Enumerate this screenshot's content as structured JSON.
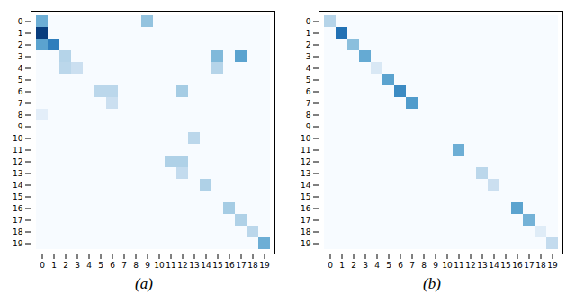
{
  "chart_data": [
    {
      "type": "heatmap",
      "title": "(a)",
      "x": [
        0,
        1,
        2,
        3,
        4,
        5,
        6,
        7,
        8,
        9,
        10,
        11,
        12,
        13,
        14,
        15,
        16,
        17,
        18,
        19
      ],
      "y": [
        0,
        1,
        2,
        3,
        4,
        5,
        6,
        7,
        8,
        9,
        10,
        11,
        12,
        13,
        14,
        15,
        16,
        17,
        18,
        19
      ],
      "zlim": [
        0,
        1
      ],
      "cells": [
        [
          0.5,
          0.0,
          0.0,
          0.0,
          0.0,
          0.0,
          0.0,
          0.0,
          0.0,
          0.4,
          0.0,
          0.0,
          0.0,
          0.0,
          0.0,
          0.0,
          0.0,
          0.0,
          0.0,
          0.0
        ],
        [
          0.95,
          0.0,
          0.0,
          0.0,
          0.0,
          0.0,
          0.0,
          0.0,
          0.0,
          0.0,
          0.0,
          0.0,
          0.0,
          0.0,
          0.0,
          0.0,
          0.0,
          0.0,
          0.0,
          0.0
        ],
        [
          0.55,
          0.7,
          0.0,
          0.0,
          0.0,
          0.0,
          0.0,
          0.0,
          0.0,
          0.0,
          0.0,
          0.0,
          0.0,
          0.0,
          0.0,
          0.0,
          0.0,
          0.0,
          0.0,
          0.0
        ],
        [
          0.0,
          0.0,
          0.3,
          0.0,
          0.0,
          0.0,
          0.0,
          0.0,
          0.0,
          0.0,
          0.0,
          0.0,
          0.0,
          0.0,
          0.0,
          0.45,
          0.0,
          0.55,
          0.0,
          0.0
        ],
        [
          0.0,
          0.0,
          0.28,
          0.22,
          0.0,
          0.0,
          0.0,
          0.0,
          0.0,
          0.0,
          0.0,
          0.0,
          0.0,
          0.0,
          0.0,
          0.3,
          0.0,
          0.0,
          0.0,
          0.0
        ],
        [
          0.0,
          0.0,
          0.0,
          0.0,
          0.0,
          0.0,
          0.0,
          0.0,
          0.0,
          0.0,
          0.0,
          0.0,
          0.0,
          0.0,
          0.0,
          0.0,
          0.0,
          0.0,
          0.0,
          0.0
        ],
        [
          0.0,
          0.0,
          0.0,
          0.0,
          0.0,
          0.28,
          0.28,
          0.0,
          0.0,
          0.0,
          0.0,
          0.0,
          0.35,
          0.0,
          0.0,
          0.0,
          0.0,
          0.0,
          0.0,
          0.0
        ],
        [
          0.0,
          0.0,
          0.0,
          0.0,
          0.0,
          0.0,
          0.22,
          0.0,
          0.0,
          0.0,
          0.0,
          0.0,
          0.0,
          0.0,
          0.0,
          0.0,
          0.0,
          0.0,
          0.0,
          0.0
        ],
        [
          0.1,
          0.0,
          0.0,
          0.0,
          0.0,
          0.0,
          0.0,
          0.0,
          0.0,
          0.0,
          0.0,
          0.0,
          0.0,
          0.0,
          0.0,
          0.0,
          0.0,
          0.0,
          0.0,
          0.0
        ],
        [
          0.0,
          0.0,
          0.0,
          0.0,
          0.0,
          0.0,
          0.0,
          0.0,
          0.0,
          0.0,
          0.0,
          0.0,
          0.0,
          0.0,
          0.0,
          0.0,
          0.0,
          0.0,
          0.0,
          0.0
        ],
        [
          0.0,
          0.0,
          0.0,
          0.0,
          0.0,
          0.0,
          0.0,
          0.0,
          0.0,
          0.0,
          0.0,
          0.0,
          0.0,
          0.28,
          0.0,
          0.0,
          0.0,
          0.0,
          0.0,
          0.0
        ],
        [
          0.0,
          0.0,
          0.0,
          0.0,
          0.0,
          0.0,
          0.0,
          0.0,
          0.0,
          0.0,
          0.0,
          0.0,
          0.0,
          0.0,
          0.0,
          0.0,
          0.0,
          0.0,
          0.0,
          0.0
        ],
        [
          0.0,
          0.0,
          0.0,
          0.0,
          0.0,
          0.0,
          0.0,
          0.0,
          0.0,
          0.0,
          0.0,
          0.32,
          0.32,
          0.0,
          0.0,
          0.0,
          0.0,
          0.0,
          0.0,
          0.0
        ],
        [
          0.0,
          0.0,
          0.0,
          0.0,
          0.0,
          0.0,
          0.0,
          0.0,
          0.0,
          0.0,
          0.0,
          0.0,
          0.25,
          0.0,
          0.0,
          0.0,
          0.0,
          0.0,
          0.0,
          0.0
        ],
        [
          0.0,
          0.0,
          0.0,
          0.0,
          0.0,
          0.0,
          0.0,
          0.0,
          0.0,
          0.0,
          0.0,
          0.0,
          0.0,
          0.0,
          0.32,
          0.0,
          0.0,
          0.0,
          0.0,
          0.0
        ],
        [
          0.0,
          0.0,
          0.0,
          0.0,
          0.0,
          0.0,
          0.0,
          0.0,
          0.0,
          0.0,
          0.0,
          0.0,
          0.0,
          0.0,
          0.0,
          0.0,
          0.0,
          0.0,
          0.0,
          0.0
        ],
        [
          0.0,
          0.0,
          0.0,
          0.0,
          0.0,
          0.0,
          0.0,
          0.0,
          0.0,
          0.0,
          0.0,
          0.0,
          0.0,
          0.0,
          0.0,
          0.0,
          0.35,
          0.0,
          0.0,
          0.0
        ],
        [
          0.0,
          0.0,
          0.0,
          0.0,
          0.0,
          0.0,
          0.0,
          0.0,
          0.0,
          0.0,
          0.0,
          0.0,
          0.0,
          0.0,
          0.0,
          0.0,
          0.0,
          0.32,
          0.0,
          0.0
        ],
        [
          0.0,
          0.0,
          0.0,
          0.0,
          0.0,
          0.0,
          0.0,
          0.0,
          0.0,
          0.0,
          0.0,
          0.0,
          0.0,
          0.0,
          0.0,
          0.0,
          0.0,
          0.0,
          0.28,
          0.0
        ],
        [
          0.0,
          0.0,
          0.0,
          0.0,
          0.0,
          0.0,
          0.0,
          0.0,
          0.0,
          0.0,
          0.0,
          0.0,
          0.0,
          0.0,
          0.0,
          0.0,
          0.0,
          0.0,
          0.0,
          0.5
        ]
      ]
    },
    {
      "type": "heatmap",
      "title": "(b)",
      "x": [
        0,
        1,
        2,
        3,
        4,
        5,
        6,
        7,
        8,
        9,
        10,
        11,
        12,
        13,
        14,
        15,
        16,
        17,
        18,
        19
      ],
      "y": [
        0,
        1,
        2,
        3,
        4,
        5,
        6,
        7,
        8,
        9,
        10,
        11,
        12,
        13,
        14,
        15,
        16,
        17,
        18,
        19
      ],
      "zlim": [
        0,
        1
      ],
      "cells": [
        [
          0.3,
          0.0,
          0.0,
          0.0,
          0.0,
          0.0,
          0.0,
          0.0,
          0.0,
          0.0,
          0.0,
          0.0,
          0.0,
          0.0,
          0.0,
          0.0,
          0.0,
          0.0,
          0.0,
          0.0
        ],
        [
          0.0,
          0.75,
          0.0,
          0.0,
          0.0,
          0.0,
          0.0,
          0.0,
          0.0,
          0.0,
          0.0,
          0.0,
          0.0,
          0.0,
          0.0,
          0.0,
          0.0,
          0.0,
          0.0,
          0.0
        ],
        [
          0.0,
          0.0,
          0.42,
          0.0,
          0.0,
          0.0,
          0.0,
          0.0,
          0.0,
          0.0,
          0.0,
          0.0,
          0.0,
          0.0,
          0.0,
          0.0,
          0.0,
          0.0,
          0.0,
          0.0
        ],
        [
          0.0,
          0.0,
          0.0,
          0.52,
          0.0,
          0.0,
          0.0,
          0.0,
          0.0,
          0.0,
          0.0,
          0.0,
          0.0,
          0.0,
          0.0,
          0.0,
          0.0,
          0.0,
          0.0,
          0.0
        ],
        [
          0.0,
          0.0,
          0.0,
          0.0,
          0.15,
          0.0,
          0.0,
          0.0,
          0.0,
          0.0,
          0.0,
          0.0,
          0.0,
          0.0,
          0.0,
          0.0,
          0.0,
          0.0,
          0.0,
          0.0
        ],
        [
          0.0,
          0.0,
          0.0,
          0.0,
          0.0,
          0.55,
          0.0,
          0.0,
          0.0,
          0.0,
          0.0,
          0.0,
          0.0,
          0.0,
          0.0,
          0.0,
          0.0,
          0.0,
          0.0,
          0.0
        ],
        [
          0.0,
          0.0,
          0.0,
          0.0,
          0.0,
          0.0,
          0.65,
          0.0,
          0.0,
          0.0,
          0.0,
          0.0,
          0.0,
          0.0,
          0.0,
          0.0,
          0.0,
          0.0,
          0.0,
          0.0
        ],
        [
          0.0,
          0.0,
          0.0,
          0.0,
          0.0,
          0.0,
          0.0,
          0.58,
          0.0,
          0.0,
          0.0,
          0.0,
          0.0,
          0.0,
          0.0,
          0.0,
          0.0,
          0.0,
          0.0,
          0.0
        ],
        [
          0.0,
          0.0,
          0.0,
          0.0,
          0.0,
          0.0,
          0.0,
          0.0,
          0.0,
          0.0,
          0.0,
          0.0,
          0.0,
          0.0,
          0.0,
          0.0,
          0.0,
          0.0,
          0.0,
          0.0
        ],
        [
          0.0,
          0.0,
          0.0,
          0.0,
          0.0,
          0.0,
          0.0,
          0.0,
          0.0,
          0.0,
          0.0,
          0.0,
          0.0,
          0.0,
          0.0,
          0.0,
          0.0,
          0.0,
          0.0,
          0.0
        ],
        [
          0.0,
          0.0,
          0.0,
          0.0,
          0.0,
          0.0,
          0.0,
          0.0,
          0.0,
          0.0,
          0.0,
          0.0,
          0.0,
          0.0,
          0.0,
          0.0,
          0.0,
          0.0,
          0.0,
          0.0
        ],
        [
          0.0,
          0.0,
          0.0,
          0.0,
          0.0,
          0.0,
          0.0,
          0.0,
          0.0,
          0.0,
          0.0,
          0.5,
          0.0,
          0.0,
          0.0,
          0.0,
          0.0,
          0.0,
          0.0,
          0.0
        ],
        [
          0.0,
          0.0,
          0.0,
          0.0,
          0.0,
          0.0,
          0.0,
          0.0,
          0.0,
          0.0,
          0.0,
          0.0,
          0.0,
          0.0,
          0.0,
          0.0,
          0.0,
          0.0,
          0.0,
          0.0
        ],
        [
          0.0,
          0.0,
          0.0,
          0.0,
          0.0,
          0.0,
          0.0,
          0.0,
          0.0,
          0.0,
          0.0,
          0.0,
          0.0,
          0.28,
          0.0,
          0.0,
          0.0,
          0.0,
          0.0,
          0.0
        ],
        [
          0.0,
          0.0,
          0.0,
          0.0,
          0.0,
          0.0,
          0.0,
          0.0,
          0.0,
          0.0,
          0.0,
          0.0,
          0.0,
          0.0,
          0.22,
          0.0,
          0.0,
          0.0,
          0.0,
          0.0
        ],
        [
          0.0,
          0.0,
          0.0,
          0.0,
          0.0,
          0.0,
          0.0,
          0.0,
          0.0,
          0.0,
          0.0,
          0.0,
          0.0,
          0.0,
          0.0,
          0.0,
          0.0,
          0.0,
          0.0,
          0.0
        ],
        [
          0.0,
          0.0,
          0.0,
          0.0,
          0.0,
          0.0,
          0.0,
          0.0,
          0.0,
          0.0,
          0.0,
          0.0,
          0.0,
          0.0,
          0.0,
          0.0,
          0.55,
          0.0,
          0.0,
          0.0
        ],
        [
          0.0,
          0.0,
          0.0,
          0.0,
          0.0,
          0.0,
          0.0,
          0.0,
          0.0,
          0.0,
          0.0,
          0.0,
          0.0,
          0.0,
          0.0,
          0.0,
          0.0,
          0.48,
          0.0,
          0.0
        ],
        [
          0.0,
          0.0,
          0.0,
          0.0,
          0.0,
          0.0,
          0.0,
          0.0,
          0.0,
          0.0,
          0.0,
          0.0,
          0.0,
          0.0,
          0.0,
          0.0,
          0.0,
          0.0,
          0.12,
          0.0
        ],
        [
          0.0,
          0.0,
          0.0,
          0.0,
          0.0,
          0.0,
          0.0,
          0.0,
          0.0,
          0.0,
          0.0,
          0.0,
          0.0,
          0.0,
          0.0,
          0.0,
          0.0,
          0.0,
          0.0,
          0.25
        ]
      ]
    }
  ]
}
